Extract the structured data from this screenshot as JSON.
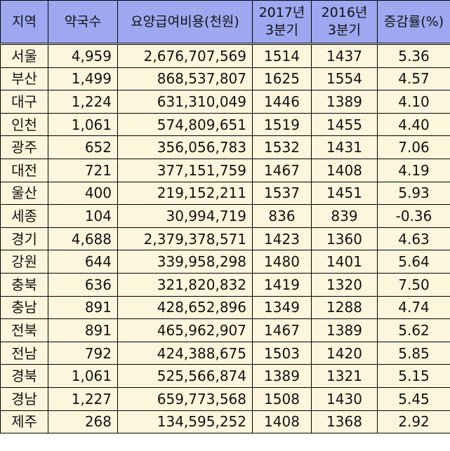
{
  "table": {
    "headers": [
      {
        "label": "지역"
      },
      {
        "label": "약국수"
      },
      {
        "label": "요양급여비용(천원)"
      },
      {
        "label": "2017년 3분기",
        "line1": "2017년",
        "line2": "3분기"
      },
      {
        "label": "2016년 3분기",
        "line1": "2016년",
        "line2": "3분기"
      },
      {
        "label": "증감률(%)"
      }
    ],
    "rows": [
      {
        "region": "서울",
        "pharmacies": "4,959",
        "cost": "2,676,707,569",
        "q3_2017": "1514",
        "q3_2016": "1437",
        "change": "5.36"
      },
      {
        "region": "부산",
        "pharmacies": "1,499",
        "cost": "868,537,807",
        "q3_2017": "1625",
        "q3_2016": "1554",
        "change": "4.57"
      },
      {
        "region": "대구",
        "pharmacies": "1,224",
        "cost": "631,310,049",
        "q3_2017": "1446",
        "q3_2016": "1389",
        "change": "4.10"
      },
      {
        "region": "인천",
        "pharmacies": "1,061",
        "cost": "574,809,651",
        "q3_2017": "1519",
        "q3_2016": "1455",
        "change": "4.40"
      },
      {
        "region": "광주",
        "pharmacies": "652",
        "cost": "356,056,783",
        "q3_2017": "1532",
        "q3_2016": "1431",
        "change": "7.06"
      },
      {
        "region": "대전",
        "pharmacies": "721",
        "cost": "377,151,759",
        "q3_2017": "1467",
        "q3_2016": "1408",
        "change": "4.19"
      },
      {
        "region": "울산",
        "pharmacies": "400",
        "cost": "219,152,211",
        "q3_2017": "1537",
        "q3_2016": "1451",
        "change": "5.93"
      },
      {
        "region": "세종",
        "pharmacies": "104",
        "cost": "30,994,719",
        "q3_2017": "836",
        "q3_2016": "839",
        "change": "-0.36"
      },
      {
        "region": "경기",
        "pharmacies": "4,688",
        "cost": "2,379,378,571",
        "q3_2017": "1423",
        "q3_2016": "1360",
        "change": "4.63"
      },
      {
        "region": "강원",
        "pharmacies": "644",
        "cost": "339,958,298",
        "q3_2017": "1480",
        "q3_2016": "1401",
        "change": "5.64"
      },
      {
        "region": "충북",
        "pharmacies": "636",
        "cost": "321,820,832",
        "q3_2017": "1419",
        "q3_2016": "1320",
        "change": "7.50"
      },
      {
        "region": "충남",
        "pharmacies": "891",
        "cost": "428,652,896",
        "q3_2017": "1349",
        "q3_2016": "1288",
        "change": "4.74"
      },
      {
        "region": "전북",
        "pharmacies": "891",
        "cost": "465,962,907",
        "q3_2017": "1467",
        "q3_2016": "1389",
        "change": "5.62"
      },
      {
        "region": "전남",
        "pharmacies": "792",
        "cost": "424,388,675",
        "q3_2017": "1503",
        "q3_2016": "1420",
        "change": "5.85"
      },
      {
        "region": "경북",
        "pharmacies": "1,061",
        "cost": "525,566,874",
        "q3_2017": "1389",
        "q3_2016": "1321",
        "change": "5.15"
      },
      {
        "region": "경남",
        "pharmacies": "1,227",
        "cost": "659,773,568",
        "q3_2017": "1508",
        "q3_2016": "1430",
        "change": "5.45"
      },
      {
        "region": "제주",
        "pharmacies": "268",
        "cost": "134,595,252",
        "q3_2017": "1408",
        "q3_2016": "1368",
        "change": "2.92"
      }
    ]
  },
  "colors": {
    "header_bg": "#9da8f0",
    "body_bg": "#fef6dc",
    "border": "#000000"
  }
}
